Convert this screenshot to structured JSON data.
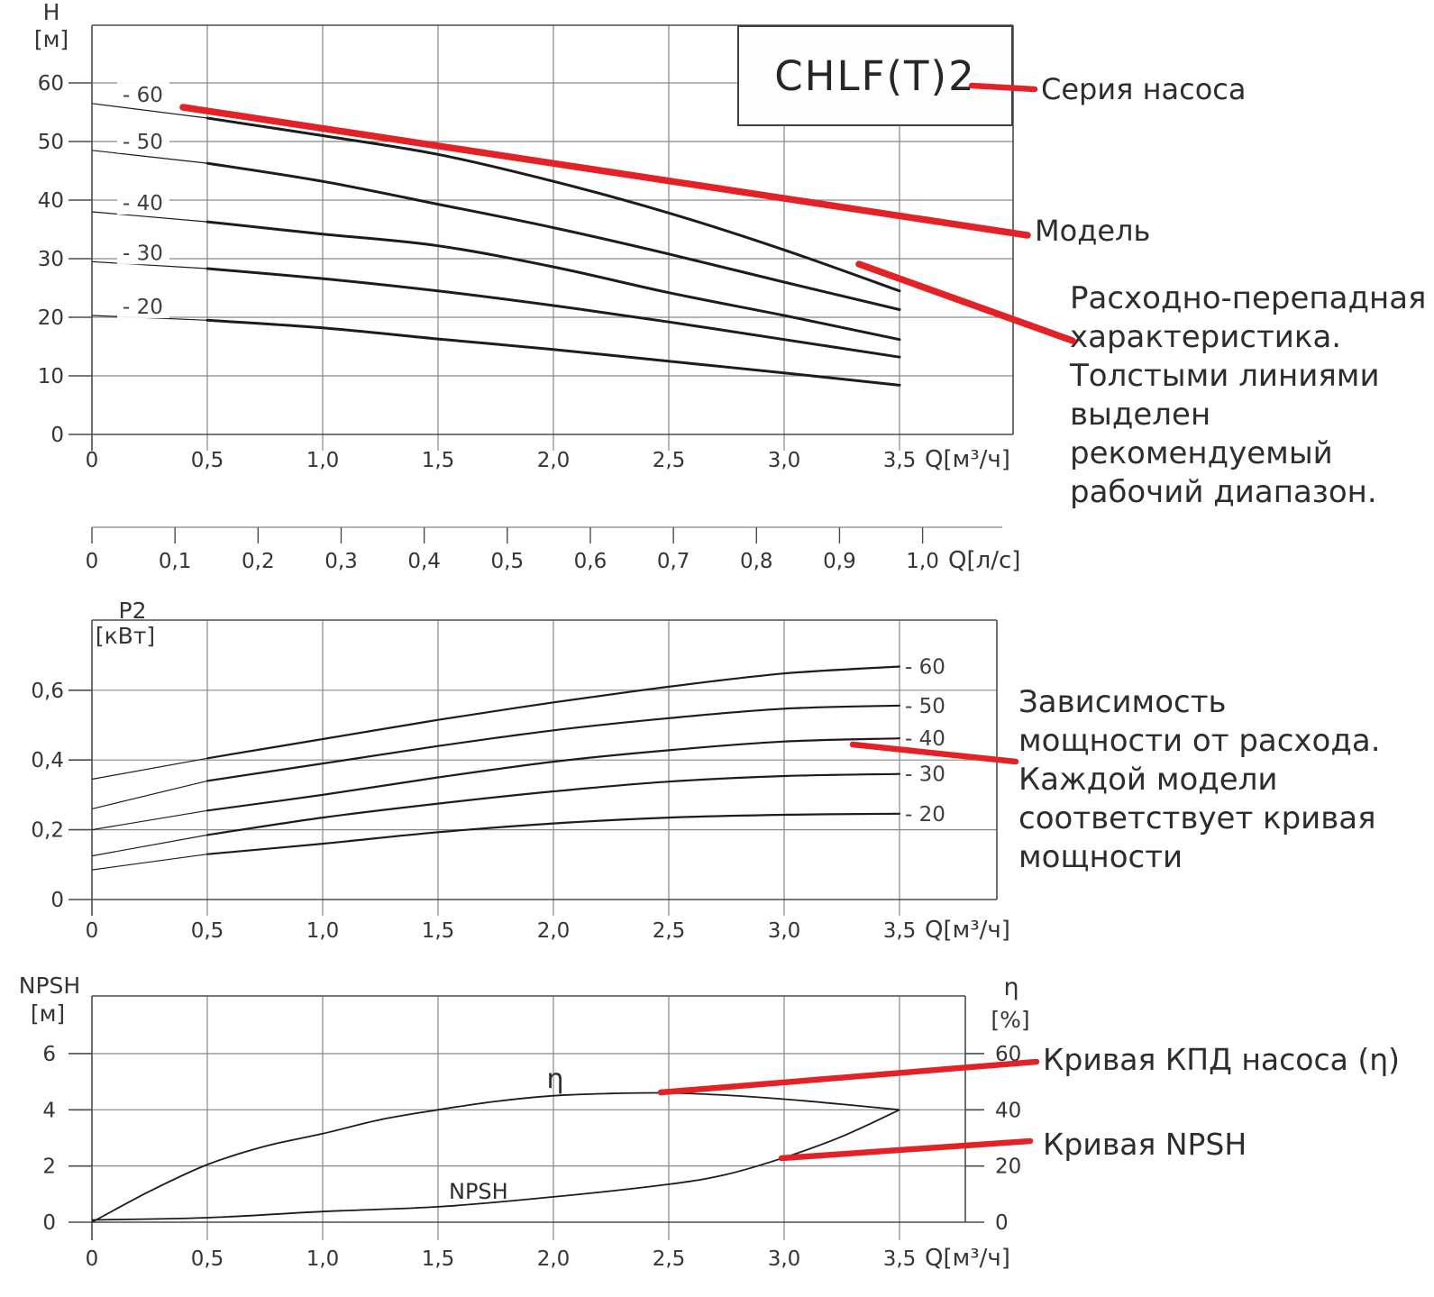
{
  "colors": {
    "red": "#e32227",
    "curve": "#1c1c1c",
    "grid": "#878787",
    "frame": "#4b4b4b",
    "text": "#2d2d2d",
    "tick_text": "#353535",
    "box_bg": "#fdfdfd"
  },
  "series_box": {
    "label": "CHLF(T)2"
  },
  "annotations": {
    "series": "Серия насоса",
    "model": "Модель",
    "flow_head": "Расходно-перепадная\nхарактеристика.\nТолстыми линиями\nвыделен\nрекомендуемый\nрабочий диапазон.",
    "power": "Зависимость\nмощности от расхода.\nКаждой модели\nсоответствует кривая\nмощности",
    "efficiency": "Кривая КПД насоса (η)",
    "npsh": "Кривая NPSH"
  },
  "chart_data": [
    {
      "id": "head",
      "type": "line",
      "title": "H",
      "unit": "[м]",
      "xlabel": "Q[м³/ч]",
      "x_tick_labels": [
        "0",
        "0,5",
        "1,0",
        "1,5",
        "2,0",
        "2,5",
        "3,0",
        "3,5"
      ],
      "x_tick_values": [
        0,
        0.5,
        1,
        1.5,
        2,
        2.5,
        3,
        3.5
      ],
      "y_tick_labels": [
        "0",
        "10",
        "20",
        "30",
        "40",
        "50",
        "60"
      ],
      "y_tick_values": [
        0,
        10,
        20,
        30,
        40,
        50,
        60
      ],
      "xlim": [
        0,
        4.0
      ],
      "ylim": [
        0,
        70
      ],
      "grid": true,
      "recommended_range": [
        0.5,
        3.5
      ],
      "x": [
        0,
        0.5,
        1,
        1.5,
        2,
        2.5,
        3,
        3.5
      ],
      "series": [
        {
          "label": "- 60",
          "model": "-60",
          "values": [
            56.5,
            54,
            51,
            47.8,
            43.2,
            37.8,
            31.5,
            24.5
          ]
        },
        {
          "label": "- 50",
          "model": "-50",
          "values": [
            48.5,
            46.3,
            43.2,
            39.3,
            35.3,
            30.8,
            26,
            21.3
          ]
        },
        {
          "label": "- 40",
          "model": "-40",
          "values": [
            38,
            36.3,
            34.2,
            32.2,
            28.6,
            24.2,
            20.3,
            16.2
          ]
        },
        {
          "label": "- 30",
          "model": "-30",
          "values": [
            29.5,
            28.3,
            26.6,
            24.5,
            22,
            19.2,
            16.2,
            13.2
          ]
        },
        {
          "label": "- 20",
          "model": "-20",
          "values": [
            20.3,
            19.5,
            18.2,
            16.3,
            14.5,
            12.5,
            10.5,
            8.4
          ]
        }
      ],
      "secondary_axis": {
        "label": "Q[л/с]",
        "tick_labels": [
          "0",
          "0,1",
          "0,2",
          "0,3",
          "0,4",
          "0,5",
          "0,6",
          "0,7",
          "0,8",
          "0,9",
          "1,0"
        ],
        "tick_values": [
          0,
          0.1,
          0.2,
          0.3,
          0.4,
          0.5,
          0.6,
          0.7,
          0.8,
          0.9,
          1.0
        ]
      }
    },
    {
      "id": "power",
      "type": "line",
      "title": "P2",
      "unit": "[кВт]",
      "xlabel": "Q[м³/ч]",
      "x_tick_labels": [
        "0",
        "0,5",
        "1,0",
        "1,5",
        "2,0",
        "2,5",
        "3,0",
        "3,5"
      ],
      "x_tick_values": [
        0,
        0.5,
        1,
        1.5,
        2,
        2.5,
        3,
        3.5
      ],
      "y_tick_labels": [
        "0",
        "0,2",
        "0,4",
        "0,6"
      ],
      "y_tick_values": [
        0,
        0.2,
        0.4,
        0.6
      ],
      "xlim": [
        0,
        4.0
      ],
      "ylim": [
        0,
        0.8
      ],
      "grid": true,
      "x": [
        0,
        0.5,
        1,
        1.5,
        2,
        2.5,
        3,
        3.5
      ],
      "series": [
        {
          "label": "- 60",
          "model": "-60",
          "values": [
            0.345,
            0.405,
            0.46,
            0.515,
            0.565,
            0.61,
            0.648,
            0.668
          ]
        },
        {
          "label": "- 50",
          "model": "-50",
          "values": [
            0.26,
            0.34,
            0.39,
            0.44,
            0.485,
            0.52,
            0.547,
            0.556
          ]
        },
        {
          "label": "- 40",
          "model": "-40",
          "values": [
            0.2,
            0.255,
            0.3,
            0.35,
            0.395,
            0.428,
            0.453,
            0.462
          ]
        },
        {
          "label": "- 30",
          "model": "-30",
          "values": [
            0.125,
            0.185,
            0.235,
            0.275,
            0.31,
            0.338,
            0.354,
            0.36
          ]
        },
        {
          "label": "- 20",
          "model": "-20",
          "values": [
            0.085,
            0.13,
            0.16,
            0.193,
            0.218,
            0.235,
            0.243,
            0.246
          ]
        }
      ]
    },
    {
      "id": "npsh_eta",
      "type": "line",
      "title_left": "NPSH",
      "unit_left": "[м]",
      "title_right": "η",
      "unit_right": "[%]",
      "xlabel": "Q[м³/ч]",
      "x_tick_labels": [
        "0",
        "0,5",
        "1,0",
        "1,5",
        "2,0",
        "2,5",
        "3,0",
        "3,5"
      ],
      "x_tick_values": [
        0,
        0.5,
        1,
        1.5,
        2,
        2.5,
        3,
        3.5
      ],
      "y_left_tick_labels": [
        "0",
        "2",
        "4",
        "6"
      ],
      "y_left_tick_values": [
        0,
        2,
        4,
        6
      ],
      "y_right_tick_labels": [
        "0",
        "20",
        "40",
        "60"
      ],
      "y_right_tick_values": [
        0,
        20,
        40,
        60
      ],
      "xlim": [
        0,
        4.0
      ],
      "ylim_left": [
        0,
        8
      ],
      "ylim_right": [
        0,
        80
      ],
      "grid": true,
      "series": [
        {
          "label": "η",
          "id": "eta",
          "axis": "right",
          "x": [
            0,
            0.25,
            0.5,
            0.75,
            1,
            1.25,
            1.5,
            1.75,
            2,
            2.25,
            2.5,
            2.75,
            3,
            3.25,
            3.5
          ],
          "values_percent": [
            0,
            11,
            20.5,
            27,
            31.5,
            36.5,
            40,
            43,
            45,
            45.8,
            46,
            45.2,
            43.8,
            42,
            40
          ]
        },
        {
          "label": "NPSH",
          "id": "npsh",
          "axis": "left",
          "x": [
            0,
            0.5,
            1,
            1.5,
            2,
            2.5,
            2.75,
            3,
            3.25,
            3.5
          ],
          "values_m": [
            0.08,
            0.16,
            0.38,
            0.55,
            0.9,
            1.35,
            1.7,
            2.3,
            3.05,
            4.0
          ]
        }
      ]
    }
  ]
}
